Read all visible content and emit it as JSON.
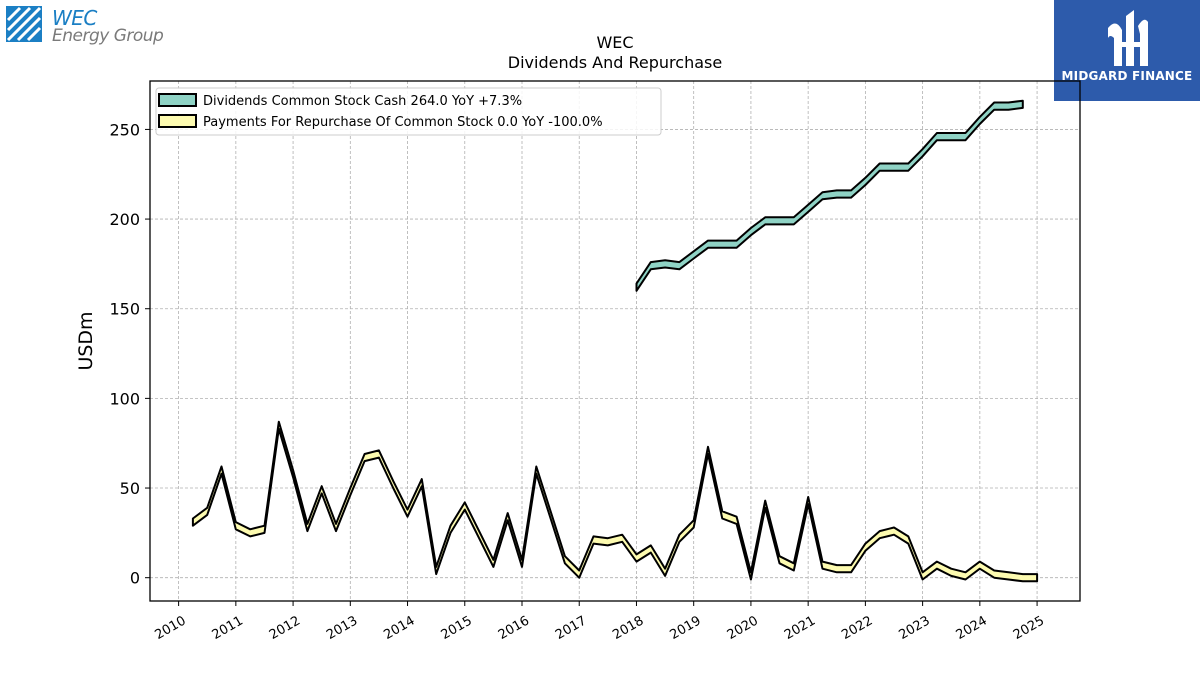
{
  "brand": {
    "logo_line1": "WEC",
    "logo_line2": "Energy Group",
    "logo_color": "#1b7fc4",
    "publisher": "MIDGARD FINANCE",
    "publisher_bg": "#2d5bab"
  },
  "chart_data": {
    "type": "area",
    "title": "WEC",
    "subtitle": "Dividends And Repurchase",
    "ylabel": "USDm",
    "xlabel": "",
    "xlim": [
      2009.5,
      2025.75
    ],
    "ylim": [
      -13,
      277
    ],
    "yticks": [
      0,
      50,
      100,
      150,
      200,
      250
    ],
    "xticks": [
      2010,
      2011,
      2012,
      2013,
      2014,
      2015,
      2016,
      2017,
      2018,
      2019,
      2020,
      2021,
      2022,
      2023,
      2024,
      2025
    ],
    "grid": true,
    "legend_position": "top-left",
    "band_width": 4,
    "series": [
      {
        "name": "Dividends Common Stock Cash",
        "legend_label": "Dividends Common Stock Cash  264.0 YoY +7.3%",
        "color": "#8fd3c5",
        "x": [
          2018.0,
          2018.25,
          2018.5,
          2018.75,
          2019.0,
          2019.25,
          2019.5,
          2019.75,
          2020.0,
          2020.25,
          2020.5,
          2020.75,
          2021.0,
          2021.25,
          2021.5,
          2021.75,
          2022.0,
          2022.25,
          2022.5,
          2022.75,
          2023.0,
          2023.25,
          2023.5,
          2023.75,
          2024.0,
          2024.25,
          2024.5,
          2024.75
        ],
        "y": [
          162,
          174,
          175,
          174,
          180,
          186,
          186,
          186,
          193,
          199,
          199,
          199,
          206,
          213,
          214,
          214,
          221,
          229,
          229,
          229,
          237,
          246,
          246,
          246,
          255,
          263,
          263,
          264
        ]
      },
      {
        "name": "Payments For Repurchase Of Common Stock",
        "legend_label": "Payments For Repurchase Of Common Stock  0.0 YoY -100.0%",
        "color": "#fdfbb0",
        "x": [
          2010.25,
          2010.5,
          2010.75,
          2011.0,
          2011.25,
          2011.5,
          2011.75,
          2012.0,
          2012.25,
          2012.5,
          2012.75,
          2013.0,
          2013.25,
          2013.5,
          2013.75,
          2014.0,
          2014.25,
          2014.5,
          2014.75,
          2015.0,
          2015.25,
          2015.5,
          2015.75,
          2016.0,
          2016.25,
          2016.5,
          2016.75,
          2017.0,
          2017.25,
          2017.5,
          2017.75,
          2018.0,
          2018.25,
          2018.5,
          2018.75,
          2019.0,
          2019.25,
          2019.5,
          2019.75,
          2020.0,
          2020.25,
          2020.5,
          2020.75,
          2021.0,
          2021.25,
          2021.5,
          2021.75,
          2022.0,
          2022.25,
          2022.5,
          2022.75,
          2023.0,
          2023.25,
          2023.5,
          2023.75,
          2024.0,
          2024.25,
          2024.5,
          2024.75,
          2025.0
        ],
        "y": [
          31,
          37,
          60,
          29,
          25,
          27,
          85,
          58,
          28,
          49,
          28,
          48,
          67,
          69,
          52,
          36,
          53,
          4,
          27,
          40,
          24,
          8,
          34,
          8,
          60,
          35,
          10,
          2,
          21,
          20,
          22,
          11,
          16,
          3,
          22,
          30,
          71,
          35,
          32,
          1,
          41,
          10,
          6,
          43,
          7,
          5,
          5,
          17,
          24,
          26,
          21,
          1,
          7,
          3,
          1,
          7,
          2,
          1,
          0,
          0
        ]
      }
    ]
  }
}
